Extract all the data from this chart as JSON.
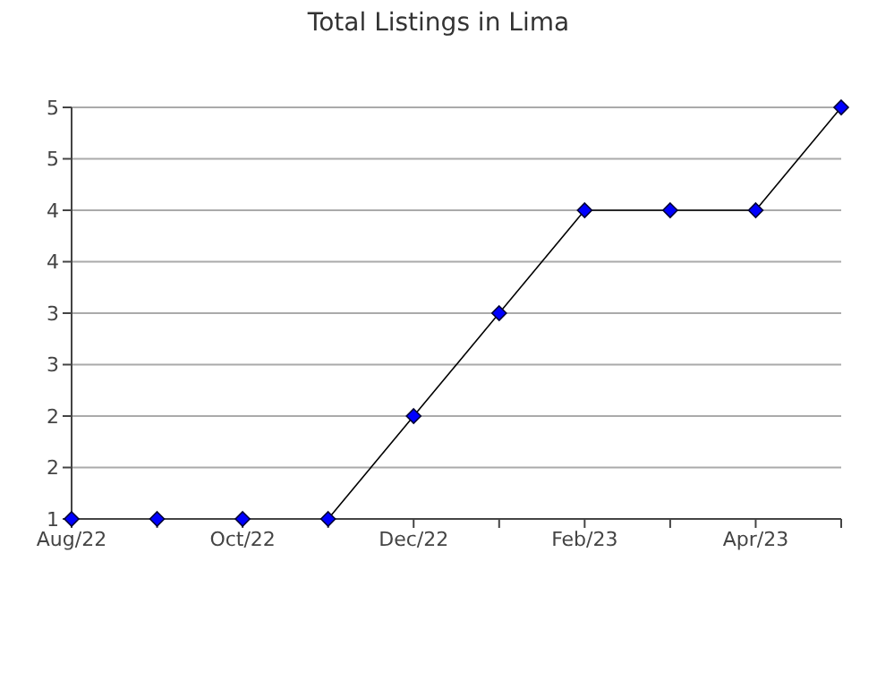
{
  "chart_data": {
    "type": "line",
    "title": "Total Listings in Lima",
    "categories": [
      "Aug/22",
      null,
      "Oct/22",
      null,
      "Dec/22",
      null,
      "Feb/23",
      null,
      "Apr/23",
      null
    ],
    "series": [
      {
        "color": "#0000ff",
        "values": [
          1,
          1,
          1,
          1,
          2,
          3,
          4,
          4,
          4,
          5
        ]
      }
    ],
    "ylim": [
      1,
      5
    ],
    "yticks": [
      1,
      {
        "value": 1.5,
        "label": "2"
      },
      2,
      {
        "value": 2.5,
        "label": "3"
      },
      3,
      {
        "value": 3.5,
        "label": "4"
      },
      4,
      {
        "value": 4.5,
        "label": "5"
      },
      5
    ],
    "grid": "y",
    "marker": "diamond",
    "line_style": "solid",
    "legend": false
  }
}
